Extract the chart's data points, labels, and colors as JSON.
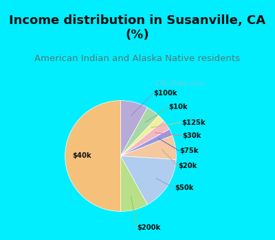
{
  "title": "Income distribution in Susanville, CA\n(%)",
  "subtitle": "American Indian and Alaska Native residents",
  "title_fontsize": 13,
  "subtitle_fontsize": 9.5,
  "labels": [
    "$100k",
    "$10k",
    "$125k",
    "$30k",
    "$75k",
    "$20k",
    "$50k",
    "$200k",
    "$40k"
  ],
  "sizes": [
    8,
    4,
    2,
    3,
    2,
    7,
    16,
    8,
    50
  ],
  "colors": [
    "#b8aad8",
    "#a8d8a8",
    "#f0f098",
    "#f5b8c0",
    "#9898e0",
    "#f5c8a0",
    "#b0ccee",
    "#b8e088",
    "#f5c07a"
  ],
  "background_cyan": "#00eeff",
  "background_chart": "#d8f0e4",
  "title_color": "#111111",
  "subtitle_color": "#557777",
  "watermark": "   City-Data.com",
  "watermark_color": "#aabbcc"
}
